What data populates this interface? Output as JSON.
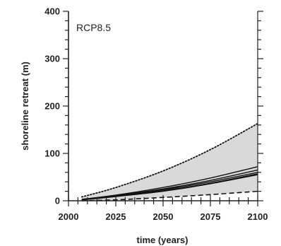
{
  "chart_data": {
    "type": "line",
    "title": "",
    "annotation": "RCP8.5",
    "xlabel": "time (years)",
    "ylabel": "shoreline retreat (m)",
    "xlim": [
      2000,
      2100
    ],
    "ylim": [
      0,
      400
    ],
    "xticks": [
      2000,
      2025,
      2050,
      2075,
      2100
    ],
    "yticks": [
      0,
      100,
      200,
      300,
      400
    ],
    "x_tick_labels": [
      "2000",
      "2025",
      "2050",
      "2075",
      "2100"
    ],
    "y_tick_labels": [
      "0",
      "100",
      "200",
      "300",
      "400"
    ],
    "grid": false,
    "legend": "none",
    "colors": {
      "band": "#d9d9d9",
      "line": "#111111",
      "axis": "#222222"
    },
    "band": {
      "x": [
        2007,
        2025,
        2050,
        2075,
        2100
      ],
      "upper": [
        8,
        28,
        63,
        108,
        163
      ],
      "lower": [
        0,
        2,
        7,
        13,
        20
      ]
    },
    "series": [
      {
        "style": "dotted",
        "x": [
          2007,
          2025,
          2050,
          2075,
          2100
        ],
        "values": [
          8,
          28,
          63,
          108,
          163
        ]
      },
      {
        "style": "dashed",
        "x": [
          2007,
          2025,
          2050,
          2075,
          2100
        ],
        "values": [
          0,
          2,
          7,
          13,
          20
        ]
      },
      {
        "style": "solid",
        "x": [
          2007,
          2025,
          2050,
          2075,
          2100
        ],
        "values": [
          3,
          12,
          28,
          48,
          72
        ]
      },
      {
        "style": "solid",
        "x": [
          2007,
          2025,
          2050,
          2075,
          2100
        ],
        "values": [
          3,
          11,
          25,
          43,
          65
        ]
      },
      {
        "style": "solid",
        "x": [
          2007,
          2025,
          2050,
          2075,
          2100
        ],
        "values": [
          2,
          9,
          21,
          37,
          57
        ]
      },
      {
        "style": "solid",
        "x": [
          2007,
          2025,
          2050,
          2075,
          2100
        ],
        "values": [
          2,
          9,
          20,
          36,
          55
        ]
      },
      {
        "style": "solid",
        "x": [
          2007,
          2025,
          2050,
          2075,
          2100
        ],
        "values": [
          2,
          10,
          23,
          40,
          60
        ]
      }
    ]
  }
}
